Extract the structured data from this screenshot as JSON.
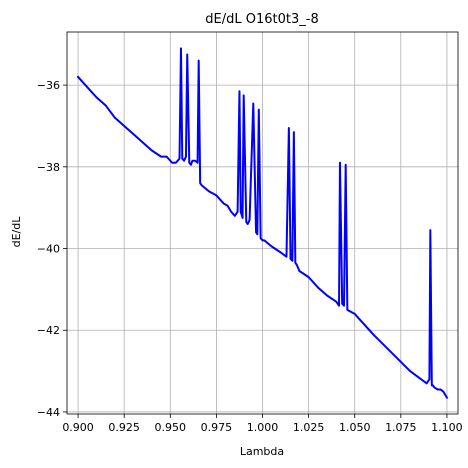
{
  "chart_data": {
    "type": "line",
    "title": "dE/dL O16t0t3_-8",
    "xlabel": "Lambda",
    "ylabel": "dE/dL",
    "xlim": [
      0.894,
      1.106
    ],
    "ylim": [
      -44.05,
      -34.7
    ],
    "xticks": [
      0.9,
      0.925,
      0.95,
      0.975,
      1.0,
      1.025,
      1.05,
      1.075,
      1.1
    ],
    "xtick_labels": [
      "0.900",
      "0.925",
      "0.950",
      "0.975",
      "1.000",
      "1.025",
      "1.050",
      "1.075",
      "1.100"
    ],
    "yticks": [
      -44,
      -42,
      -40,
      -38,
      -36
    ],
    "ytick_labels": [
      "−44",
      "−42",
      "−40",
      "−38",
      "−36"
    ],
    "grid": true,
    "legend": "none",
    "series": [
      {
        "color": "#0000ff",
        "x": [
          0.9,
          0.905,
          0.91,
          0.915,
          0.92,
          0.93,
          0.94,
          0.945,
          0.948,
          0.951,
          0.953,
          0.955,
          0.9558,
          0.9565,
          0.9575,
          0.9585,
          0.9592,
          0.9603,
          0.9612,
          0.962,
          0.9635,
          0.9648,
          0.9654,
          0.9662,
          0.967,
          0.971,
          0.975,
          0.978,
          0.979,
          0.981,
          0.983,
          0.985,
          0.9865,
          0.9875,
          0.9882,
          0.9892,
          0.9898,
          0.9912,
          0.992,
          0.993,
          0.995,
          0.9965,
          0.9972,
          0.998,
          0.999,
          1.0001,
          1.001,
          1.005,
          1.01,
          1.013,
          1.0143,
          1.0152,
          1.0162,
          1.017,
          1.0178,
          1.0186,
          1.02,
          1.025,
          1.03,
          1.035,
          1.04,
          1.0415,
          1.042,
          1.0432,
          1.0442,
          1.0451,
          1.046,
          1.05,
          1.06,
          1.07,
          1.08,
          1.089,
          1.0905,
          1.091,
          1.0918,
          1.0924,
          1.0932,
          1.095,
          1.0965,
          1.098,
          1.1
        ],
        "y": [
          -35.8,
          -36.05,
          -36.3,
          -36.5,
          -36.8,
          -37.2,
          -37.6,
          -37.75,
          -37.75,
          -37.9,
          -37.9,
          -37.8,
          -35.1,
          -37.8,
          -37.85,
          -37.75,
          -35.25,
          -37.9,
          -37.95,
          -37.85,
          -37.85,
          -37.9,
          -35.4,
          -38.4,
          -38.45,
          -38.6,
          -38.7,
          -38.85,
          -38.9,
          -38.95,
          -39.1,
          -39.2,
          -39.1,
          -36.15,
          -39.1,
          -39.25,
          -36.25,
          -39.35,
          -39.4,
          -39.3,
          -36.45,
          -39.6,
          -39.65,
          -36.6,
          -39.75,
          -39.8,
          -39.8,
          -39.95,
          -40.1,
          -40.2,
          -37.05,
          -40.25,
          -40.3,
          -37.15,
          -40.35,
          -40.4,
          -40.55,
          -40.7,
          -40.95,
          -41.15,
          -41.3,
          -41.4,
          -37.9,
          -41.35,
          -41.4,
          -37.95,
          -41.5,
          -41.6,
          -42.1,
          -42.55,
          -43.0,
          -43.3,
          -43.2,
          -39.55,
          -43.35,
          -43.35,
          -43.4,
          -43.45,
          -43.45,
          -43.5,
          -43.65
        ]
      }
    ]
  }
}
